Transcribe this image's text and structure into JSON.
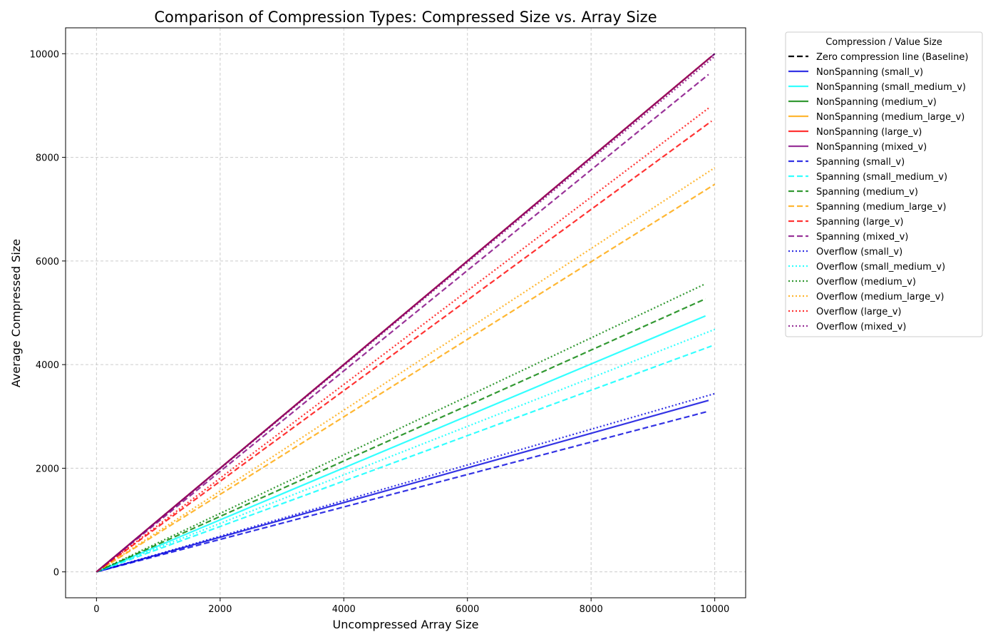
{
  "chart_data": {
    "type": "line",
    "title": "Comparison of Compression Types: Compressed Size vs. Array Size",
    "xlabel": "Uncompressed Array Size",
    "ylabel": "Average Compressed Size",
    "xlim": [
      -500,
      10500
    ],
    "ylim": [
      -500,
      10500
    ],
    "xticks": [
      0,
      2000,
      4000,
      6000,
      8000,
      10000
    ],
    "yticks": [
      0,
      2000,
      4000,
      6000,
      8000,
      10000
    ],
    "grid": true,
    "legend": {
      "title": "Compression / Value Size",
      "placement": "outside-right-top"
    },
    "series": [
      {
        "name": "Zero compression line (Baseline)",
        "color": "#000000",
        "style": "dashed",
        "x": [
          0,
          10000
        ],
        "y": [
          0,
          10000
        ]
      },
      {
        "name": "NonSpanning (small_v)",
        "color": "#0000dd",
        "style": "solid",
        "x": [
          0,
          9900
        ],
        "y": [
          0,
          3310
        ]
      },
      {
        "name": "NonSpanning (small_medium_v)",
        "color": "#00ffff",
        "style": "solid",
        "x": [
          0,
          9850
        ],
        "y": [
          0,
          4940
        ]
      },
      {
        "name": "NonSpanning (medium_v)",
        "color": "#008000",
        "style": "solid",
        "x": [
          0,
          9950
        ],
        "y": [
          0,
          9950
        ]
      },
      {
        "name": "NonSpanning (medium_large_v)",
        "color": "#ffa500",
        "style": "solid",
        "x": [
          0,
          9950
        ],
        "y": [
          0,
          9950
        ]
      },
      {
        "name": "NonSpanning (large_v)",
        "color": "#ff0000",
        "style": "solid",
        "x": [
          0,
          9950
        ],
        "y": [
          0,
          9950
        ]
      },
      {
        "name": "NonSpanning (mixed_v)",
        "color": "#800080",
        "style": "solid",
        "x": [
          0,
          10000
        ],
        "y": [
          0,
          10000
        ]
      },
      {
        "name": "Spanning (small_v)",
        "color": "#0000dd",
        "style": "dashed",
        "x": [
          0,
          9900
        ],
        "y": [
          0,
          3100
        ]
      },
      {
        "name": "Spanning (small_medium_v)",
        "color": "#00ffff",
        "style": "dashed",
        "x": [
          0,
          9950
        ],
        "y": [
          0,
          4360
        ]
      },
      {
        "name": "Spanning (medium_v)",
        "color": "#008000",
        "style": "dashed",
        "x": [
          0,
          9850
        ],
        "y": [
          0,
          5270
        ]
      },
      {
        "name": "Spanning (medium_large_v)",
        "color": "#ffa500",
        "style": "dashed",
        "x": [
          0,
          10000
        ],
        "y": [
          0,
          7480
        ]
      },
      {
        "name": "Spanning (large_v)",
        "color": "#ff0000",
        "style": "dashed",
        "x": [
          0,
          9950
        ],
        "y": [
          0,
          8700
        ]
      },
      {
        "name": "Spanning (mixed_v)",
        "color": "#800080",
        "style": "dashed",
        "x": [
          0,
          9900
        ],
        "y": [
          0,
          9600
        ]
      },
      {
        "name": "Overflow (small_v)",
        "color": "#0000dd",
        "style": "dotted",
        "x": [
          0,
          10000
        ],
        "y": [
          0,
          3440
        ]
      },
      {
        "name": "Overflow (small_medium_v)",
        "color": "#00ffff",
        "style": "dotted",
        "x": [
          0,
          10000
        ],
        "y": [
          0,
          4680
        ]
      },
      {
        "name": "Overflow (medium_v)",
        "color": "#008000",
        "style": "dotted",
        "x": [
          0,
          9850
        ],
        "y": [
          0,
          5560
        ]
      },
      {
        "name": "Overflow (medium_large_v)",
        "color": "#ffa500",
        "style": "dotted",
        "x": [
          0,
          10000
        ],
        "y": [
          0,
          7800
        ]
      },
      {
        "name": "Overflow (large_v)",
        "color": "#ff0000",
        "style": "dotted",
        "x": [
          0,
          9900
        ],
        "y": [
          0,
          8950
        ]
      },
      {
        "name": "Overflow (mixed_v)",
        "color": "#800080",
        "style": "dotted",
        "x": [
          0,
          10000
        ],
        "y": [
          0,
          9950
        ]
      }
    ]
  }
}
